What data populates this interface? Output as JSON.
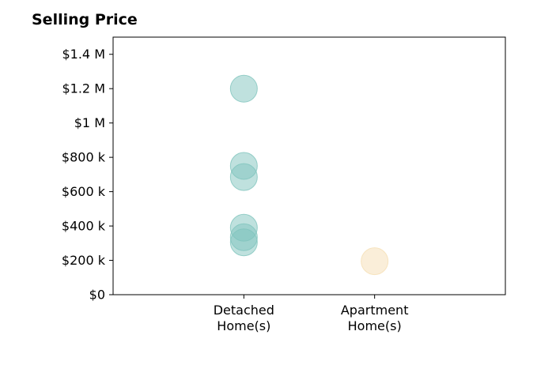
{
  "chart_data": {
    "type": "scatter",
    "title": "Selling Price",
    "xlabel": "",
    "ylabel": "",
    "categories": [
      "Detached\nHome(s)",
      "Apartment\nHome(s)"
    ],
    "x_slots": 3,
    "ylim": [
      0,
      1500000
    ],
    "yticks": [
      {
        "value": 0,
        "label": "$0"
      },
      {
        "value": 200000,
        "label": "$200 k"
      },
      {
        "value": 400000,
        "label": "$400 k"
      },
      {
        "value": 600000,
        "label": "$600 k"
      },
      {
        "value": 800000,
        "label": "$800 k"
      },
      {
        "value": 1000000,
        "label": "$1 M"
      },
      {
        "value": 1200000,
        "label": "$1.2 M"
      },
      {
        "value": 1400000,
        "label": "$1.4 M"
      }
    ],
    "grid": false,
    "series": [
      {
        "category": "Detached\nHome(s)",
        "color": "#7fc4bd",
        "values": [
          1200000,
          750000,
          685000,
          390000,
          335000,
          305000
        ]
      },
      {
        "category": "Apartment\nHome(s)",
        "color": "#f5deb3",
        "values": [
          195000
        ]
      }
    ]
  }
}
